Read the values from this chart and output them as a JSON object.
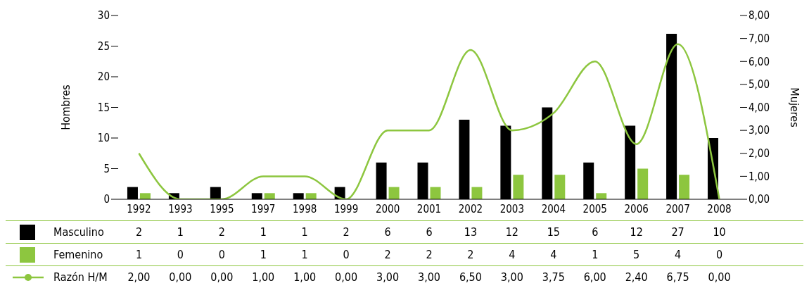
{
  "chart_data": {
    "type": "bar",
    "ylabel": "Hombres",
    "y2label": "Mujeres",
    "categories": [
      "1992",
      "1993",
      "1995",
      "1997",
      "1998",
      "1999",
      "2000",
      "2001",
      "2002",
      "2003",
      "2004",
      "2005",
      "2006",
      "2007",
      "2008"
    ],
    "series": [
      {
        "name": "Masculino",
        "color": "#000000",
        "values": [
          2,
          1,
          2,
          1,
          1,
          2,
          6,
          6,
          13,
          12,
          15,
          6,
          12,
          27,
          10
        ],
        "value_labels": [
          "2",
          "1",
          "2",
          "1",
          "1",
          "2",
          "6",
          "6",
          "13",
          "12",
          "15",
          "6",
          "12",
          "27",
          "10"
        ]
      },
      {
        "name": "Femenino",
        "color": "#8dc63f",
        "values": [
          1,
          0,
          0,
          1,
          1,
          0,
          2,
          2,
          2,
          4,
          4,
          1,
          5,
          4,
          0
        ],
        "value_labels": [
          "1",
          "0",
          "0",
          "1",
          "1",
          "0",
          "2",
          "2",
          "2",
          "4",
          "4",
          "1",
          "5",
          "4",
          "0"
        ]
      },
      {
        "name": "Razón H/M",
        "type": "line",
        "axis": "y2",
        "color": "#8dc63f",
        "values": [
          2,
          0,
          0,
          1,
          1,
          0,
          3,
          3,
          6.5,
          3,
          3.75,
          6,
          2.4,
          6.75,
          0
        ],
        "value_labels": [
          "2,00",
          "0,00",
          "0,00",
          "1,00",
          "1,00",
          "0,00",
          "3,00",
          "3,00",
          "6,50",
          "3,00",
          "3,75",
          "6,00",
          "2,40",
          "6,75",
          "0,00"
        ]
      }
    ],
    "ylim": [
      0,
      30
    ],
    "yticks": [
      0,
      5,
      10,
      15,
      20,
      25,
      30
    ],
    "y2lim": [
      0,
      8
    ],
    "y2ticks": [
      {
        "value": 0,
        "label": "0,00"
      },
      {
        "value": 1,
        "label": "1,00"
      },
      {
        "value": 2,
        "label": "2,00"
      },
      {
        "value": 3,
        "label": "3,00"
      },
      {
        "value": 4,
        "label": "4,00"
      },
      {
        "value": 5,
        "label": "5,00"
      },
      {
        "value": 6,
        "label": "6,00"
      },
      {
        "value": 7,
        "label": "7,00"
      },
      {
        "value": 8,
        "label": "8,00"
      }
    ],
    "grid": false,
    "legend": "bottom"
  }
}
